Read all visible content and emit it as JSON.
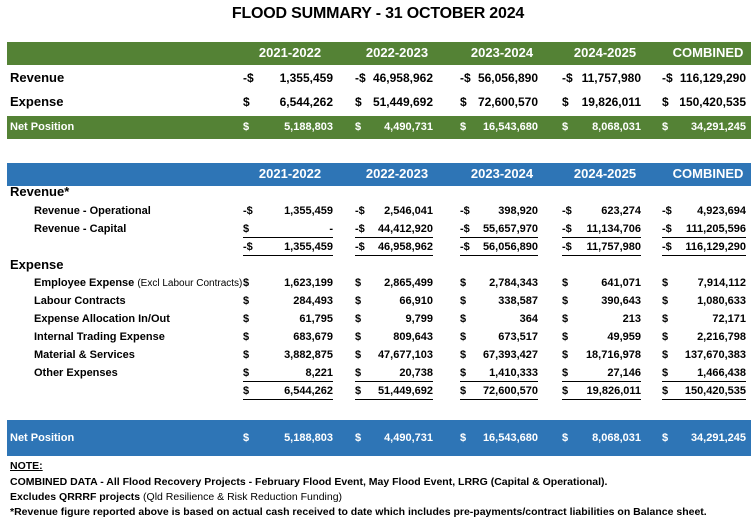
{
  "title": "FLOOD SUMMARY - 31 OCTOBER 2024",
  "columns": [
    "2021-2022",
    "2022-2023",
    "2023-2024",
    "2024-2025",
    "COMBINED"
  ],
  "summary": {
    "rows": [
      {
        "label": "Revenue",
        "cells": [
          [
            "-$",
            "1,355,459"
          ],
          [
            "-$",
            "46,958,962"
          ],
          [
            "-$",
            "56,056,890"
          ],
          [
            "-$",
            "11,757,980"
          ],
          [
            "-$",
            "116,129,290"
          ]
        ]
      },
      {
        "label": "Expense",
        "cells": [
          [
            "$",
            "6,544,262"
          ],
          [
            "$",
            "51,449,692"
          ],
          [
            "$",
            "72,600,570"
          ],
          [
            "$",
            "19,826,011"
          ],
          [
            "$",
            "150,420,535"
          ]
        ]
      }
    ],
    "net": {
      "label": "Net Position",
      "cells": [
        [
          "$",
          "5,188,803"
        ],
        [
          "$",
          "4,490,731"
        ],
        [
          "$",
          "16,543,680"
        ],
        [
          "$",
          "8,068,031"
        ],
        [
          "$",
          "34,291,245"
        ]
      ]
    }
  },
  "detail": {
    "revenue_heading": "Revenue*",
    "revenue_rows": [
      {
        "label": "Revenue - Operational",
        "cells": [
          [
            "-$",
            "1,355,459"
          ],
          [
            "-$",
            "2,546,041"
          ],
          [
            "-$",
            "398,920"
          ],
          [
            "-$",
            "623,274"
          ],
          [
            "-$",
            "4,923,694"
          ]
        ]
      },
      {
        "label": "Revenue - Capital",
        "cells": [
          [
            "$",
            "-"
          ],
          [
            "-$",
            "44,412,920"
          ],
          [
            "-$",
            "55,657,970"
          ],
          [
            "-$",
            "11,134,706"
          ],
          [
            "-$",
            "111,205,596"
          ]
        ]
      }
    ],
    "revenue_total": {
      "label": "",
      "cells": [
        [
          "-$",
          "1,355,459"
        ],
        [
          "-$",
          "46,958,962"
        ],
        [
          "-$",
          "56,056,890"
        ],
        [
          "-$",
          "11,757,980"
        ],
        [
          "-$",
          "116,129,290"
        ]
      ]
    },
    "expense_heading": "Expense",
    "expense_rows": [
      {
        "label": "Employee Expense",
        "label_note": "(Excl Labour Contracts)",
        "cells": [
          [
            "$",
            "1,623,199"
          ],
          [
            "$",
            "2,865,499"
          ],
          [
            "$",
            "2,784,343"
          ],
          [
            "$",
            "641,071"
          ],
          [
            "$",
            "7,914,112"
          ]
        ]
      },
      {
        "label": "Labour Contracts",
        "cells": [
          [
            "$",
            "284,493"
          ],
          [
            "$",
            "66,910"
          ],
          [
            "$",
            "338,587"
          ],
          [
            "$",
            "390,643"
          ],
          [
            "$",
            "1,080,633"
          ]
        ]
      },
      {
        "label": "Expense Allocation In/Out",
        "cells": [
          [
            "$",
            "61,795"
          ],
          [
            "$",
            "9,799"
          ],
          [
            "$",
            "364"
          ],
          [
            "$",
            "213"
          ],
          [
            "$",
            "72,171"
          ]
        ]
      },
      {
        "label": "Internal Trading Expense",
        "cells": [
          [
            "$",
            "683,679"
          ],
          [
            "$",
            "809,643"
          ],
          [
            "$",
            "673,517"
          ],
          [
            "$",
            "49,959"
          ],
          [
            "$",
            "2,216,798"
          ]
        ]
      },
      {
        "label": "Material & Services",
        "cells": [
          [
            "$",
            "3,882,875"
          ],
          [
            "$",
            "47,677,103"
          ],
          [
            "$",
            "67,393,427"
          ],
          [
            "$",
            "18,716,978"
          ],
          [
            "$",
            "137,670,383"
          ]
        ]
      },
      {
        "label": "Other Expenses",
        "cells": [
          [
            "$",
            "8,221"
          ],
          [
            "$",
            "20,738"
          ],
          [
            "$",
            "1,410,333"
          ],
          [
            "$",
            "27,146"
          ],
          [
            "$",
            "1,466,438"
          ]
        ]
      }
    ],
    "expense_total": {
      "label": "",
      "cells": [
        [
          "$",
          "6,544,262"
        ],
        [
          "$",
          "51,449,692"
        ],
        [
          "$",
          "72,600,570"
        ],
        [
          "$",
          "19,826,011"
        ],
        [
          "$",
          "150,420,535"
        ]
      ]
    },
    "net": {
      "label": "Net Position",
      "cells": [
        [
          "$",
          "5,188,803"
        ],
        [
          "$",
          "4,490,731"
        ],
        [
          "$",
          "16,543,680"
        ],
        [
          "$",
          "8,068,031"
        ],
        [
          "$",
          "34,291,245"
        ]
      ]
    }
  },
  "notes": {
    "heading": "NOTE:",
    "line1": "COMBINED DATA - All Flood Recovery Projects - February Flood Event, May Flood Event, LRRG (Capital & Operational).",
    "line2": "Excludes QRRRF projects",
    "line2_note": "(Qld Resilience & Risk Reduction Funding)",
    "line3": "*Revenue figure reported above is based on actual cash received to date which includes pre-payments/contract liabilities on Balance sheet."
  }
}
